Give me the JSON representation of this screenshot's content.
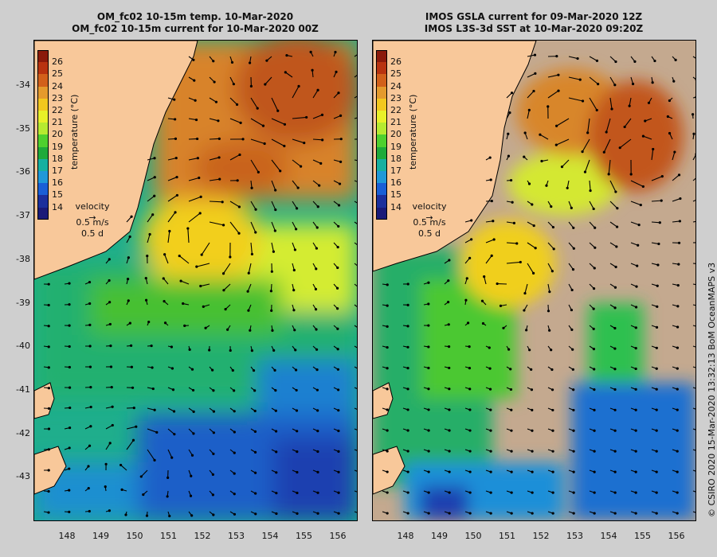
{
  "left_panel": {
    "title_line1": "OM_fc02 10-15m temp. 10-Mar-2020",
    "title_line2": "OM_fc02 10-15m current for 10-Mar-2020 00Z"
  },
  "right_panel": {
    "title_line1": "IMOS GSLA current for 09-Mar-2020 12Z",
    "title_line2": "IMOS L3S-3d SST at 10-Mar-2020 09:20Z"
  },
  "latitude_labels": [
    "-34",
    "-35",
    "-36",
    "-37",
    "-38",
    "-39",
    "-40",
    "-41",
    "-42",
    "-43"
  ],
  "longitude_labels": [
    "148",
    "149",
    "150",
    "151",
    "152",
    "153",
    "154",
    "155",
    "156"
  ],
  "colorbar": {
    "title": "temperature (°C)",
    "ticks": [
      "26",
      "25",
      "24",
      "23",
      "22",
      "21",
      "20",
      "19",
      "18",
      "17",
      "16",
      "15",
      "14"
    ],
    "colors": [
      "#8b1a0a",
      "#b8330f",
      "#d2601a",
      "#e49a2c",
      "#f2c81e",
      "#e8f028",
      "#b6ea30",
      "#4fd02e",
      "#1faa3a",
      "#17b0a0",
      "#2098d8",
      "#1a5fd6",
      "#1c2f9c",
      "#1a1a78"
    ]
  },
  "velocity_legend": {
    "title": "velocity",
    "speed": "0.5 m/s",
    "duration": "0.5 d"
  },
  "credit": "© CSIRO 2020   15-Mar-2020 13:32:13 BoM OceanMAPS v3",
  "colors": {
    "land": "#f8c89a",
    "no_data": "#c4a98f",
    "background": "#cfcfcf"
  }
}
